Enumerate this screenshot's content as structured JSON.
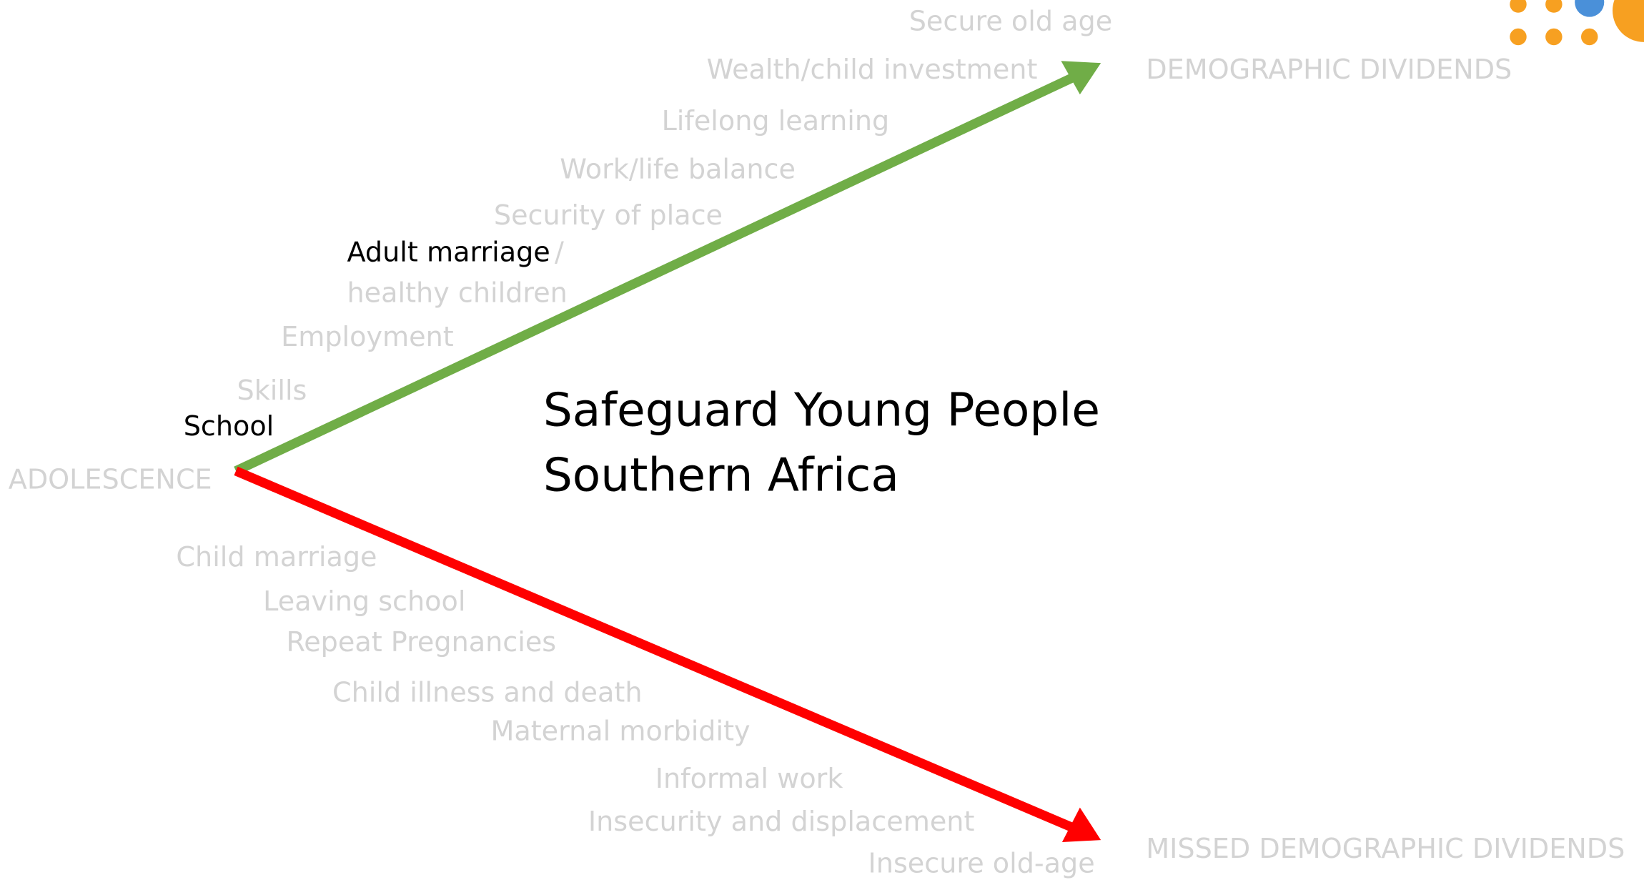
{
  "title": [
    "Safeguard Young People",
    "Southern Africa"
  ],
  "start": "ADOLESCENCE",
  "upper_path": {
    "end": "DEMOGRAPHIC DIVIDENDS",
    "labels": [
      "Secure old age",
      "Wealth/child investment",
      "Lifelong learning",
      "Work/life balance",
      "Security of place",
      "Adult marriage",
      "/",
      "healthy children",
      "Employment",
      "Skills",
      "School"
    ]
  },
  "lower_path": {
    "end": "MISSED DEMOGRAPHIC DIVIDENDS",
    "labels": [
      "Child marriage",
      "Leaving school",
      "Repeat Pregnancies",
      "Child illness and death",
      "Maternal morbidity",
      "Informal work",
      "Insecurity and displacement",
      "Insecure old-age"
    ]
  }
}
